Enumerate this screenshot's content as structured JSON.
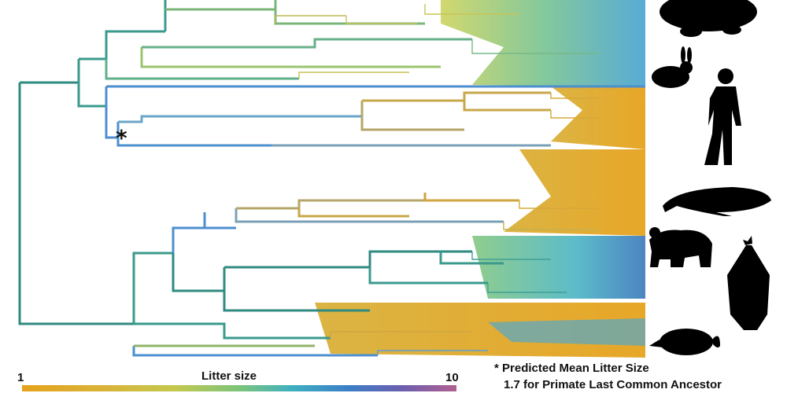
{
  "legend": {
    "title": "Litter size",
    "min_label": "1",
    "max_label": "10",
    "gradient_colors": [
      "#e6a21c",
      "#d8b43a",
      "#c4c84e",
      "#7cc47a",
      "#3fb0c0",
      "#3b7fc7",
      "#6a5fb0",
      "#b06090"
    ]
  },
  "annotation": {
    "marker": "*",
    "line1": "* Predicted Mean Litter Size",
    "line2": "1.7 for Primate Last Common Ancestor"
  },
  "silhouettes": [
    "mole-silhouette-icon",
    "rabbit-silhouette-icon",
    "human-silhouette-icon",
    "whale-silhouette-icon",
    "bear-silhouette-icon",
    "bat-silhouette-icon",
    "shrew-silhouette-icon"
  ],
  "colors": {
    "teal_branch": "#3a9a8c",
    "blue_branch": "#4c8fcf",
    "orange_fill": "#e6a21c",
    "yellow_fill": "#cfd24a",
    "silhouette": "#000000"
  }
}
